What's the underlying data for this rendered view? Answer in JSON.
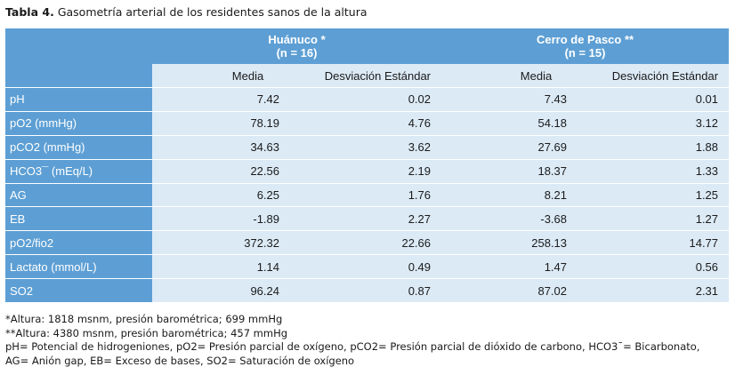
{
  "caption": {
    "label": "Tabla 4.",
    "text": "Gasometría arterial de los residentes sanos de la altura"
  },
  "table": {
    "groups": [
      {
        "name": "Huánuco *",
        "n": "(n = 16)"
      },
      {
        "name": "Cerro de Pasco  **",
        "n": "(n = 15)"
      }
    ],
    "subheaders": [
      "Media",
      "Desviación Estándar",
      "Media",
      "Desviación Estándar"
    ],
    "rows": [
      {
        "label": "pH",
        "values": [
          "7.42",
          "0.02",
          "7.43",
          "0.01"
        ]
      },
      {
        "label": "pO2 (mmHg)",
        "values": [
          "78.19",
          "4.76",
          "54.18",
          "3.12"
        ]
      },
      {
        "label": "pCO2 (mmHg)",
        "values": [
          "34.63",
          "3.62",
          "27.69",
          "1.88"
        ]
      },
      {
        "label": "HCO3¯ (mEq/L)",
        "values": [
          "22.56",
          "2.19",
          "18.37",
          "1.33"
        ]
      },
      {
        "label": "AG",
        "values": [
          "6.25",
          "1.76",
          "8.21",
          "1.25"
        ]
      },
      {
        "label": "EB",
        "values": [
          "-1.89",
          "2.27",
          "-3.68",
          "1.27"
        ]
      },
      {
        "label": "pO2/fio2",
        "values": [
          "372.32",
          "22.66",
          "258.13",
          "14.77"
        ]
      },
      {
        "label": "Lactato (mmol/L)",
        "values": [
          "1.14",
          "0.49",
          "1.47",
          "0.56"
        ]
      },
      {
        "label": "SO2",
        "values": [
          "96.24",
          "0.87",
          "87.02",
          "2.31"
        ]
      }
    ]
  },
  "notes": [
    "*Altura: 1818 msnm, presión barométrica; 699 mmHg",
    "**Altura: 4380 msnm, presión barométrica; 457 mmHg",
    "pH= Potencial de hidrogeniones, pO2= Presión parcial de oxígeno, pCO2= Presión parcial de dióxido de carbono, HCO3¯= Bicarbonato,",
    "AG= Anión gap, EB= Exceso de bases, SO2= Saturación de oxígeno"
  ]
}
